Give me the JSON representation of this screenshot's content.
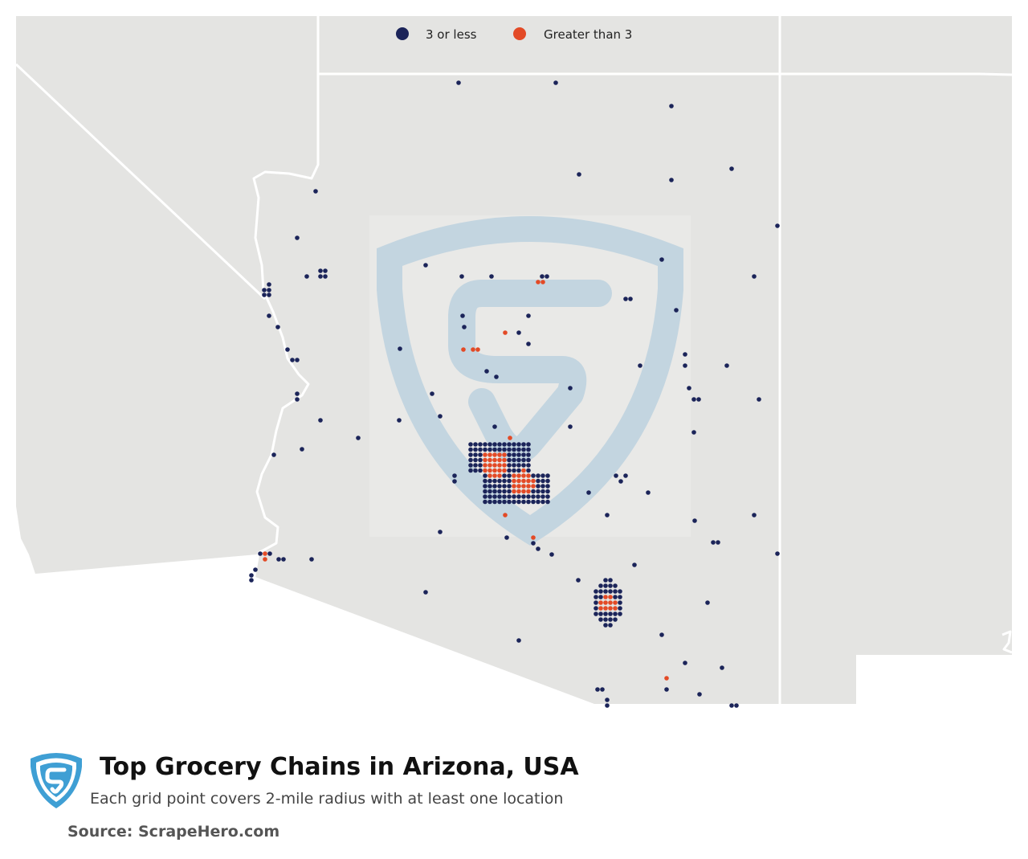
{
  "legend": {
    "items": [
      {
        "label": "3 or less",
        "color": "#1b2459"
      },
      {
        "label": "Greater than 3",
        "color": "#e34a26"
      }
    ]
  },
  "colors": {
    "land": "#e4e4e2",
    "border": "#ffffff",
    "low": "#1b2459",
    "high": "#e34a26",
    "watermark": "#b9cfdc",
    "logo": "#3f9fd4"
  },
  "icons": {
    "watermark": "scrapehero-shield-watermark",
    "logo": "scrapehero-shield-logo"
  },
  "footer": {
    "title": "Top Grocery Chains in Arizona, USA",
    "subtitle": "Each grid point covers 2-mile radius with at least one location",
    "source": "Source: ScrapeHero.com"
  }
}
